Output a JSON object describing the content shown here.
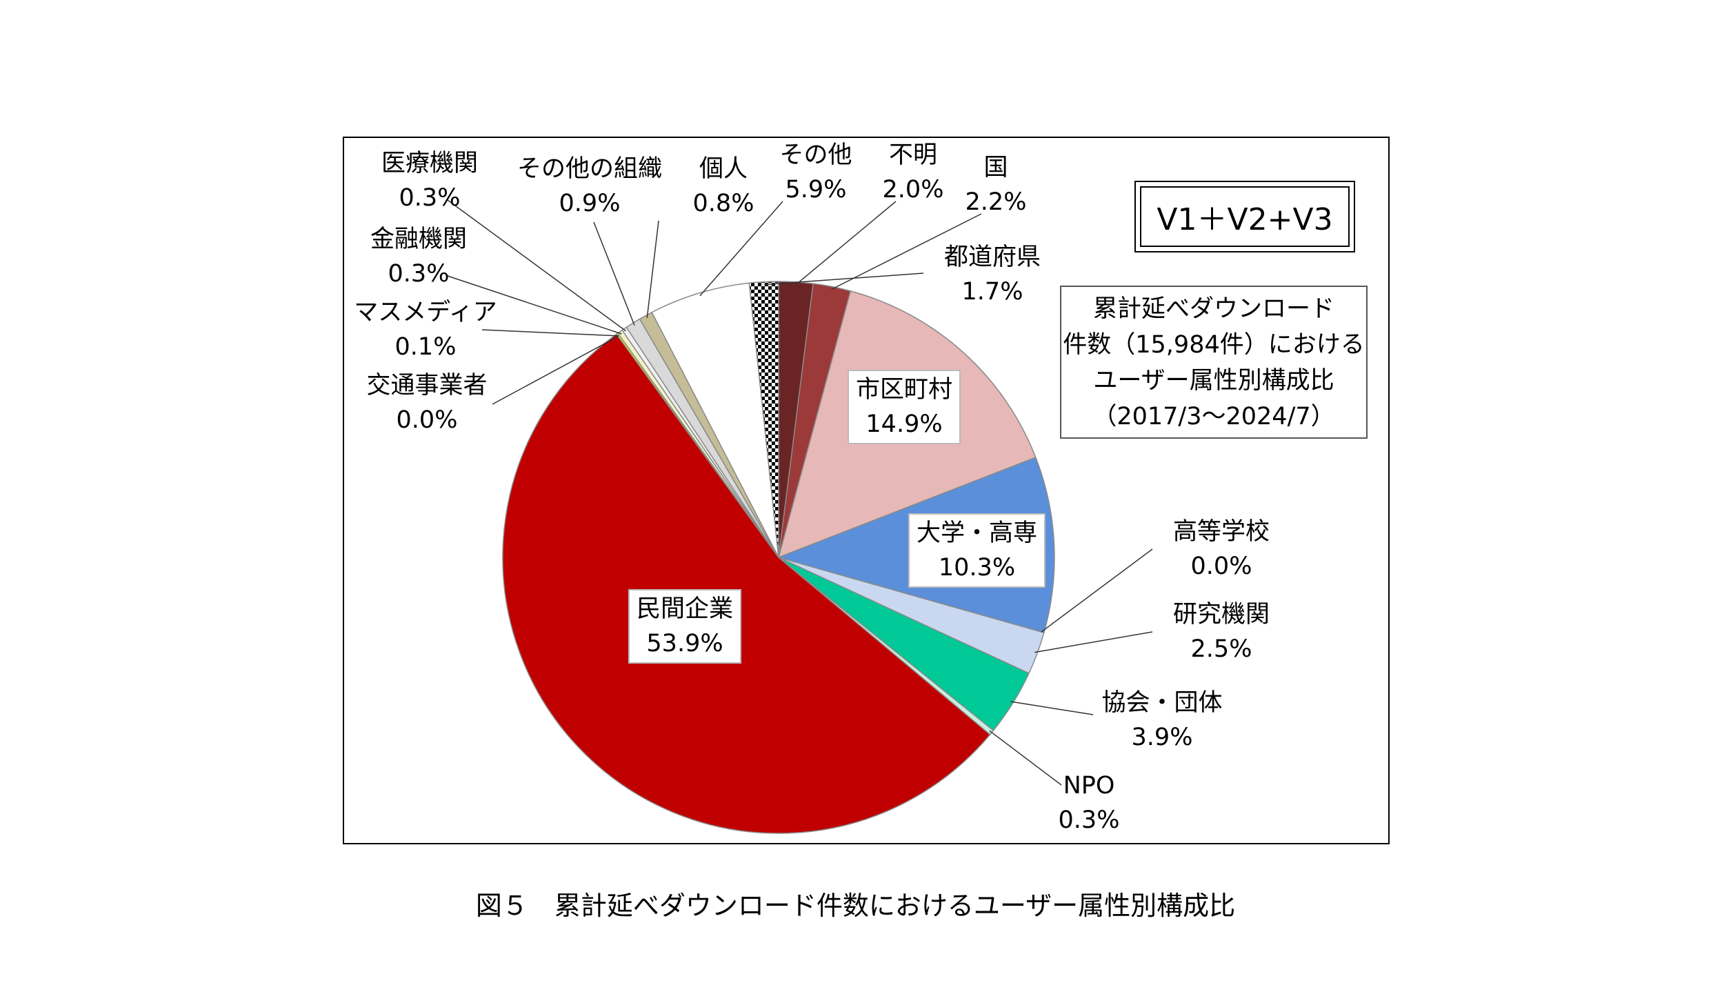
{
  "caption": "図５　累計延べダウンロード件数におけるユーザー属性別構成比",
  "badge": "V1＋V2+V3",
  "description": [
    "累計延べダウンロード",
    "件数（15,984件）における",
    "ユーザー属性別構成比",
    "（2017/3～2024/7）"
  ],
  "chart_data": {
    "type": "pie",
    "title": "",
    "slices": [
      {
        "label": "不明",
        "value": 2.0,
        "display": "2.0%",
        "color": "#6b2424",
        "pattern": "solid"
      },
      {
        "label": "国",
        "value": 2.2,
        "display": "2.2%",
        "color": "#9c3a3a",
        "pattern": "solid"
      },
      {
        "label": "市区町村",
        "value": 14.9,
        "display": "14.9%",
        "color": "#e6b8b7",
        "pattern": "solid"
      },
      {
        "label": "大学・高専",
        "value": 10.3,
        "display": "10.3%",
        "color": "#5b8fd9",
        "pattern": "solid"
      },
      {
        "label": "高等学校",
        "value": 0.0,
        "display": "0.0%",
        "color": "#1f3a93",
        "pattern": "solid"
      },
      {
        "label": "研究機関",
        "value": 2.5,
        "display": "2.5%",
        "color": "#c9d8f0",
        "pattern": "solid"
      },
      {
        "label": "協会・団体",
        "value": 3.9,
        "display": "3.9%",
        "color": "#00c896",
        "pattern": "solid"
      },
      {
        "label": "NPO",
        "value": 0.3,
        "display": "0.3%",
        "color": "#c7efe0",
        "pattern": "solid"
      },
      {
        "label": "民間企業",
        "value": 53.9,
        "display": "53.9%",
        "color": "#c00000",
        "pattern": "solid"
      },
      {
        "label": "交通事業者",
        "value": 0.0,
        "display": "0.0%",
        "color": "#ff9900",
        "pattern": "solid"
      },
      {
        "label": "マスメディア",
        "value": 0.1,
        "display": "0.1%",
        "color": "#ffff00",
        "pattern": "solid"
      },
      {
        "label": "金融機関",
        "value": 0.3,
        "display": "0.3%",
        "color": "#f2f2c8",
        "pattern": "solid"
      },
      {
        "label": "医療機関",
        "value": 0.3,
        "display": "0.3%",
        "color": "#f0f0f0",
        "pattern": "solid"
      },
      {
        "label": "その他の組織",
        "value": 0.9,
        "display": "0.9%",
        "color": "#d9d9d9",
        "pattern": "solid"
      },
      {
        "label": "個人",
        "value": 0.8,
        "display": "0.8%",
        "color": "#c4bd97",
        "pattern": "solid"
      },
      {
        "label": "その他",
        "value": 5.9,
        "display": "5.9%",
        "color": "#ffffff",
        "pattern": "solid"
      },
      {
        "label": "都道府県",
        "value": 1.7,
        "display": "1.7%",
        "color": "#000000",
        "pattern": "checker"
      }
    ]
  }
}
